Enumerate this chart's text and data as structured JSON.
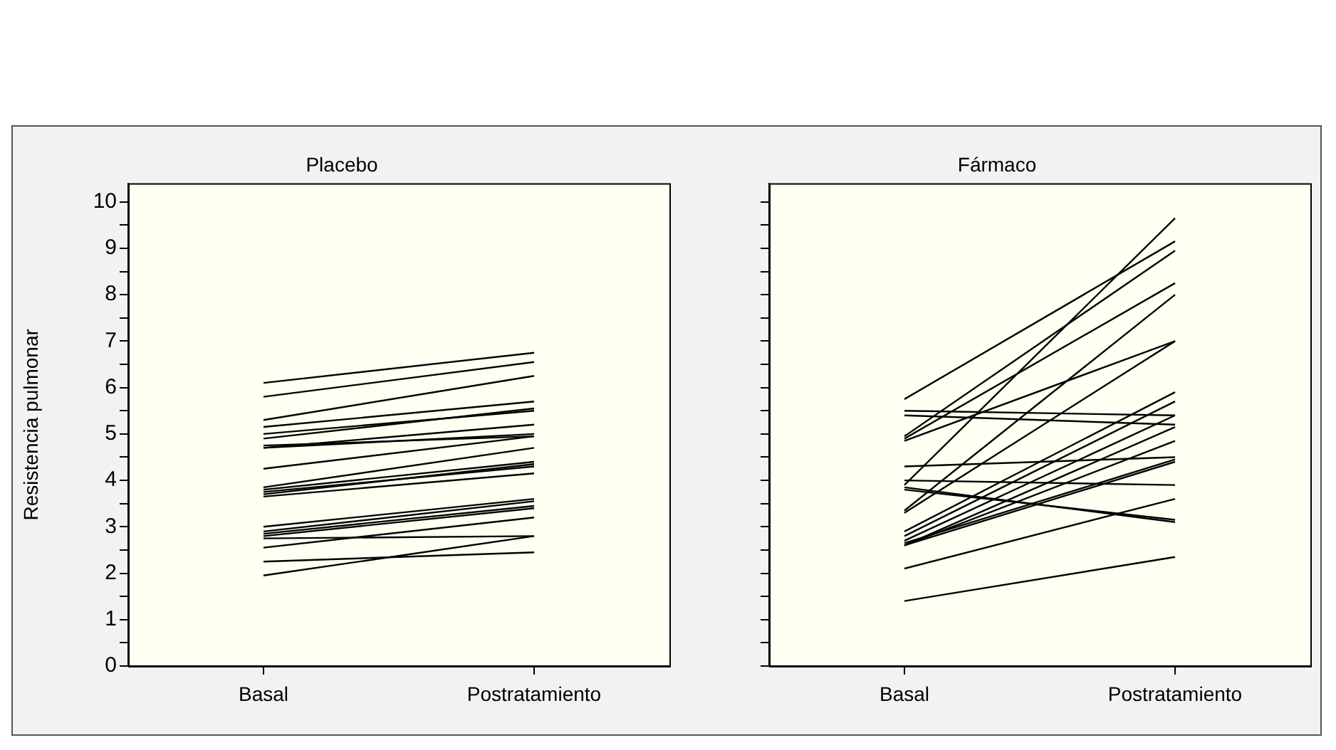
{
  "chart_data": [
    {
      "type": "line",
      "title": "Placebo",
      "ylabel": "Resistencia pulmonar",
      "categories": [
        "Basal",
        "Postratamiento"
      ],
      "ylim": [
        0,
        10.4
      ],
      "yticks": [
        0,
        {
          "value": 0.5,
          "label": null
        },
        1,
        {
          "value": 1.5,
          "label": null
        },
        2,
        {
          "value": 2.5,
          "label": null
        },
        3,
        {
          "value": 3.5,
          "label": null
        },
        4,
        {
          "value": 4.5,
          "label": null
        },
        5,
        {
          "value": 5.5,
          "label": null
        },
        6,
        {
          "value": 6.5,
          "label": null
        },
        7,
        {
          "value": 7.5,
          "label": null
        },
        8,
        {
          "value": 8.5,
          "label": null
        },
        9,
        {
          "value": 9.5,
          "label": null
        },
        10
      ],
      "marker": "none",
      "series": [
        {
          "color": "#000000",
          "values": [
            6.1,
            6.75
          ]
        },
        {
          "color": "#000000",
          "values": [
            5.8,
            6.55
          ]
        },
        {
          "color": "#000000",
          "values": [
            5.3,
            6.25
          ]
        },
        {
          "color": "#000000",
          "values": [
            5.15,
            5.7
          ]
        },
        {
          "color": "#000000",
          "values": [
            5.0,
            5.5
          ]
        },
        {
          "color": "#000000",
          "values": [
            4.9,
            5.55
          ]
        },
        {
          "color": "#000000",
          "values": [
            4.75,
            4.95
          ]
        },
        {
          "color": "#000000",
          "values": [
            4.7,
            5.2
          ]
        },
        {
          "color": "#000000",
          "values": [
            4.7,
            5.0
          ]
        },
        {
          "color": "#000000",
          "values": [
            4.25,
            4.95
          ]
        },
        {
          "color": "#000000",
          "values": [
            3.85,
            4.7
          ]
        },
        {
          "color": "#000000",
          "values": [
            3.8,
            4.4
          ]
        },
        {
          "color": "#000000",
          "values": [
            3.75,
            4.3
          ]
        },
        {
          "color": "#000000",
          "values": [
            3.7,
            4.35
          ]
        },
        {
          "color": "#000000",
          "values": [
            3.65,
            4.15
          ]
        },
        {
          "color": "#000000",
          "values": [
            3.0,
            3.6
          ]
        },
        {
          "color": "#000000",
          "values": [
            2.9,
            3.55
          ]
        },
        {
          "color": "#000000",
          "values": [
            2.85,
            3.45
          ]
        },
        {
          "color": "#000000",
          "values": [
            2.8,
            3.4
          ]
        },
        {
          "color": "#000000",
          "values": [
            2.75,
            2.8
          ]
        },
        {
          "color": "#000000",
          "values": [
            2.55,
            3.2
          ]
        },
        {
          "color": "#000000",
          "values": [
            2.25,
            2.45
          ]
        },
        {
          "color": "#000000",
          "values": [
            1.95,
            2.8
          ]
        }
      ]
    },
    {
      "type": "line",
      "title": "Fármaco",
      "categories": [
        "Basal",
        "Postratamiento"
      ],
      "ylim": [
        0,
        10.4
      ],
      "yticks": [
        0,
        {
          "value": 0.5,
          "label": null
        },
        1,
        {
          "value": 1.5,
          "label": null
        },
        2,
        {
          "value": 2.5,
          "label": null
        },
        3,
        {
          "value": 3.5,
          "label": null
        },
        4,
        {
          "value": 4.5,
          "label": null
        },
        5,
        {
          "value": 5.5,
          "label": null
        },
        6,
        {
          "value": 6.5,
          "label": null
        },
        7,
        {
          "value": 7.5,
          "label": null
        },
        8,
        {
          "value": 8.5,
          "label": null
        },
        9,
        {
          "value": 9.5,
          "label": null
        },
        10
      ],
      "marker": "none",
      "tick_labels": "x",
      "series": [
        {
          "color": "#000000",
          "values": [
            5.75,
            9.15
          ]
        },
        {
          "color": "#000000",
          "values": [
            5.5,
            5.4
          ]
        },
        {
          "color": "#000000",
          "values": [
            5.4,
            5.2
          ]
        },
        {
          "color": "#000000",
          "values": [
            4.95,
            8.95
          ]
        },
        {
          "color": "#000000",
          "values": [
            4.9,
            8.25
          ]
        },
        {
          "color": "#000000",
          "values": [
            4.85,
            7.0
          ]
        },
        {
          "color": "#000000",
          "values": [
            3.9,
            9.65
          ]
        },
        {
          "color": "#000000",
          "values": [
            3.85,
            3.1
          ]
        },
        {
          "color": "#000000",
          "values": [
            3.8,
            3.15
          ]
        },
        {
          "color": "#000000",
          "values": [
            4.3,
            4.5
          ]
        },
        {
          "color": "#000000",
          "values": [
            3.35,
            8.0
          ]
        },
        {
          "color": "#000000",
          "values": [
            3.3,
            7.0
          ]
        },
        {
          "color": "#000000",
          "values": [
            4.0,
            3.9
          ]
        },
        {
          "color": "#000000",
          "values": [
            2.9,
            5.9
          ]
        },
        {
          "color": "#000000",
          "values": [
            2.8,
            5.7
          ]
        },
        {
          "color": "#000000",
          "values": [
            2.7,
            5.4
          ]
        },
        {
          "color": "#000000",
          "values": [
            2.6,
            5.15
          ]
        },
        {
          "color": "#000000",
          "values": [
            2.6,
            4.85
          ]
        },
        {
          "color": "#000000",
          "values": [
            2.6,
            4.4
          ]
        },
        {
          "color": "#000000",
          "values": [
            2.65,
            4.45
          ]
        },
        {
          "color": "#000000",
          "values": [
            2.1,
            3.6
          ]
        },
        {
          "color": "#000000",
          "values": [
            1.4,
            2.35
          ]
        }
      ]
    }
  ]
}
